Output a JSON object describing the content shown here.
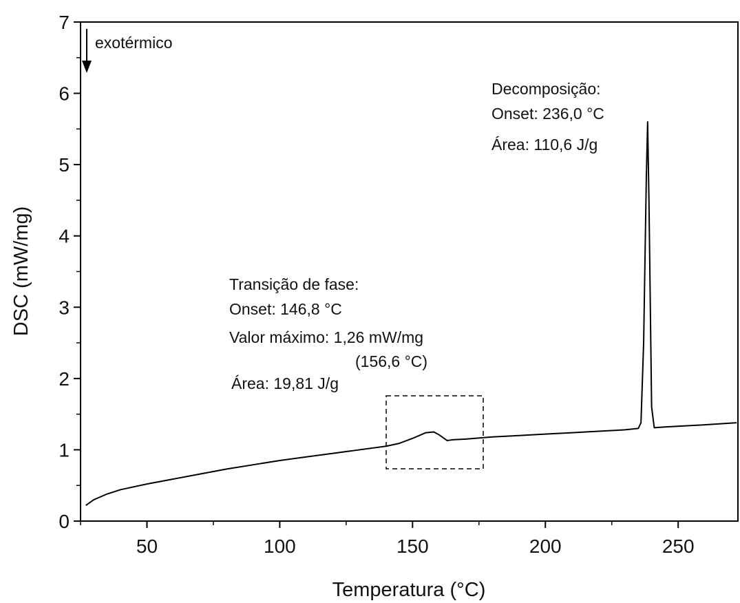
{
  "chart_data": {
    "type": "line",
    "x_label": "Temperatura (°C)",
    "y_label": "DSC (mW/mg)",
    "xlim": [
      25,
      272.5
    ],
    "ylim": [
      0,
      7
    ],
    "xticks": [
      50,
      100,
      150,
      200,
      250
    ],
    "yticks": [
      0,
      1,
      2,
      3,
      4,
      5,
      6,
      7
    ],
    "xminorticks": [
      25,
      75,
      125,
      175,
      225
    ],
    "yminorticks": [
      0.5,
      1.5,
      2.5,
      3.5,
      4.5,
      5.5,
      6.5
    ],
    "color": "#000000",
    "x": [
      27,
      30,
      35,
      40,
      50,
      60,
      70,
      80,
      90,
      100,
      110,
      120,
      130,
      140,
      145,
      150,
      155,
      158,
      160,
      163,
      165,
      170,
      180,
      190,
      200,
      210,
      220,
      230,
      235,
      236,
      237,
      238,
      238.5,
      239,
      240,
      241,
      245,
      260,
      272
    ],
    "values": [
      0.22,
      0.3,
      0.38,
      0.44,
      0.52,
      0.59,
      0.66,
      0.73,
      0.79,
      0.85,
      0.9,
      0.95,
      1.0,
      1.05,
      1.09,
      1.16,
      1.24,
      1.25,
      1.21,
      1.13,
      1.14,
      1.15,
      1.18,
      1.2,
      1.22,
      1.24,
      1.26,
      1.28,
      1.3,
      1.38,
      2.5,
      4.8,
      5.6,
      4.5,
      1.6,
      1.31,
      1.32,
      1.35,
      1.38
    ],
    "annotations": [
      "exotérmico",
      "Decomposição:",
      "Onset: 236,0 °C",
      "Área: 110,6 J/g",
      "Transição de fase:",
      "Onset: 146,8 °C",
      "Valor máximo: 1,26 mW/mg",
      "(156,6 °C)",
      "Área: 19,81 J/g"
    ]
  }
}
